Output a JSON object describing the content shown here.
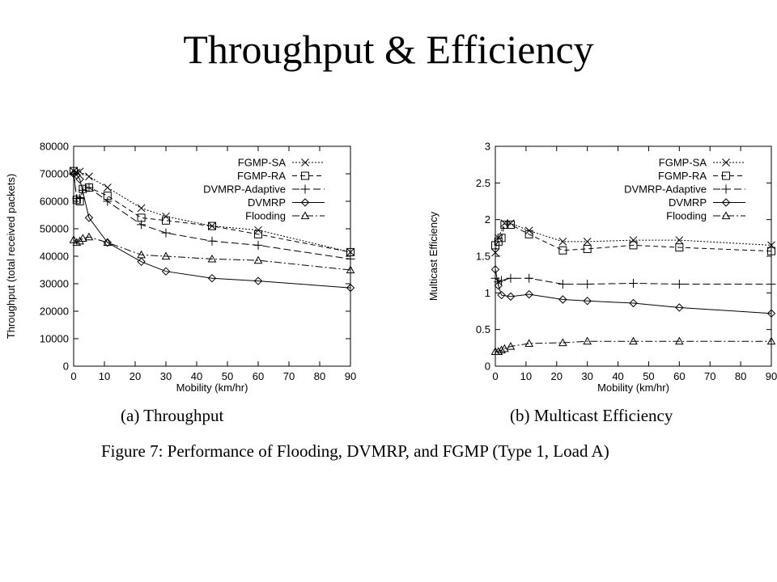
{
  "slide": {
    "title": "Throughput & Efficiency",
    "figure_caption": "Figure 7: Performance of Flooding, DVMRP, and FGMP (Type 1, Load A)"
  },
  "chart_data": [
    {
      "type": "line",
      "caption": "(a) Throughput",
      "xlabel": "Mobility (km/hr)",
      "ylabel": "Throughput (total received packets)",
      "xlim": [
        0,
        90
      ],
      "ylim": [
        0,
        80000
      ],
      "xticks": [
        0,
        10,
        20,
        30,
        40,
        50,
        60,
        70,
        80,
        90
      ],
      "yticks": [
        0,
        10000,
        20000,
        30000,
        40000,
        50000,
        60000,
        70000,
        80000
      ],
      "legend_position": "top-right",
      "series": [
        {
          "name": "FGMP-SA",
          "marker": "x",
          "dash": "2,2",
          "points": [
            [
              0,
              71000
            ],
            [
              1,
              70500
            ],
            [
              2,
              70800
            ],
            [
              5,
              69000
            ],
            [
              11,
              65000
            ],
            [
              22,
              57500
            ],
            [
              30,
              54500
            ],
            [
              45,
              51000
            ],
            [
              60,
              49500
            ],
            [
              90,
              41500
            ]
          ]
        },
        {
          "name": "FGMP-RA",
          "marker": "square",
          "dash": "6,4",
          "points": [
            [
              0,
              71000
            ],
            [
              1,
              60500
            ],
            [
              2,
              60000
            ],
            [
              3,
              64500
            ],
            [
              5,
              65000
            ],
            [
              11,
              62000
            ],
            [
              22,
              54000
            ],
            [
              30,
              53000
            ],
            [
              45,
              51000
            ],
            [
              60,
              48000
            ],
            [
              90,
              41500
            ]
          ]
        },
        {
          "name": "DVMRP-Adaptive",
          "marker": "plus",
          "dash": "9,4",
          "points": [
            [
              0,
              70000
            ],
            [
              1,
              61000
            ],
            [
              2,
              61000
            ],
            [
              3,
              64000
            ],
            [
              5,
              65000
            ],
            [
              11,
              60000
            ],
            [
              22,
              51500
            ],
            [
              30,
              48500
            ],
            [
              45,
              45500
            ],
            [
              60,
              44000
            ],
            [
              90,
              39000
            ]
          ]
        },
        {
          "name": "DVMRP",
          "marker": "diamond",
          "dash": "",
          "points": [
            [
              0,
              70000
            ],
            [
              1,
              69500
            ],
            [
              2,
              68000
            ],
            [
              5,
              54000
            ],
            [
              11,
              45000
            ],
            [
              22,
              38000
            ],
            [
              30,
              34500
            ],
            [
              45,
              32000
            ],
            [
              60,
              31000
            ],
            [
              90,
              28500
            ]
          ]
        },
        {
          "name": "Flooding",
          "marker": "triangle",
          "dash": "9,3,2,3",
          "points": [
            [
              0,
              46000
            ],
            [
              1,
              45000
            ],
            [
              2,
              45500
            ],
            [
              3,
              46500
            ],
            [
              5,
              47000
            ],
            [
              11,
              45000
            ],
            [
              22,
              40500
            ],
            [
              30,
              40000
            ],
            [
              45,
              39000
            ],
            [
              60,
              38500
            ],
            [
              90,
              35000
            ]
          ]
        }
      ]
    },
    {
      "type": "line",
      "caption": "(b) Multicast Efficiency",
      "xlabel": "Mobility (km/hr)",
      "ylabel": "Multicast Efficiency",
      "xlim": [
        0,
        90
      ],
      "ylim": [
        0,
        3
      ],
      "xticks": [
        0,
        10,
        20,
        30,
        40,
        50,
        60,
        70,
        80,
        90
      ],
      "yticks": [
        0,
        0.5,
        1,
        1.5,
        2,
        2.5,
        3
      ],
      "legend_position": "top-right",
      "series": [
        {
          "name": "FGMP-SA",
          "marker": "x",
          "dash": "2,2",
          "points": [
            [
              0,
              1.55
            ],
            [
              1,
              1.75
            ],
            [
              3,
              1.95
            ],
            [
              5,
              1.95
            ],
            [
              11,
              1.85
            ],
            [
              22,
              1.7
            ],
            [
              30,
              1.7
            ],
            [
              45,
              1.72
            ],
            [
              60,
              1.72
            ],
            [
              90,
              1.65
            ]
          ]
        },
        {
          "name": "FGMP-RA",
          "marker": "square",
          "dash": "6,4",
          "points": [
            [
              0,
              1.65
            ],
            [
              1,
              1.7
            ],
            [
              2,
              1.75
            ],
            [
              3,
              1.93
            ],
            [
              5,
              1.93
            ],
            [
              11,
              1.8
            ],
            [
              22,
              1.58
            ],
            [
              30,
              1.6
            ],
            [
              45,
              1.65
            ],
            [
              60,
              1.62
            ],
            [
              90,
              1.57
            ]
          ]
        },
        {
          "name": "DVMRP-Adaptive",
          "marker": "plus",
          "dash": "9,4",
          "points": [
            [
              0,
              1.2
            ],
            [
              1,
              1.15
            ],
            [
              2,
              1.17
            ],
            [
              5,
              1.2
            ],
            [
              11,
              1.2
            ],
            [
              22,
              1.12
            ],
            [
              30,
              1.12
            ],
            [
              45,
              1.13
            ],
            [
              60,
              1.12
            ],
            [
              90,
              1.12
            ]
          ]
        },
        {
          "name": "DVMRP",
          "marker": "diamond",
          "dash": "",
          "points": [
            [
              0,
              1.32
            ],
            [
              1,
              1.1
            ],
            [
              2,
              0.97
            ],
            [
              5,
              0.95
            ],
            [
              11,
              0.98
            ],
            [
              22,
              0.91
            ],
            [
              30,
              0.89
            ],
            [
              45,
              0.86
            ],
            [
              60,
              0.8
            ],
            [
              90,
              0.72
            ]
          ]
        },
        {
          "name": "Flooding",
          "marker": "triangle",
          "dash": "9,3,2,3",
          "points": [
            [
              0,
              0.2
            ],
            [
              1,
              0.2
            ],
            [
              2,
              0.22
            ],
            [
              3,
              0.24
            ],
            [
              5,
              0.27
            ],
            [
              11,
              0.31
            ],
            [
              22,
              0.32
            ],
            [
              30,
              0.34
            ],
            [
              45,
              0.34
            ],
            [
              60,
              0.34
            ],
            [
              90,
              0.34
            ]
          ]
        }
      ]
    }
  ]
}
